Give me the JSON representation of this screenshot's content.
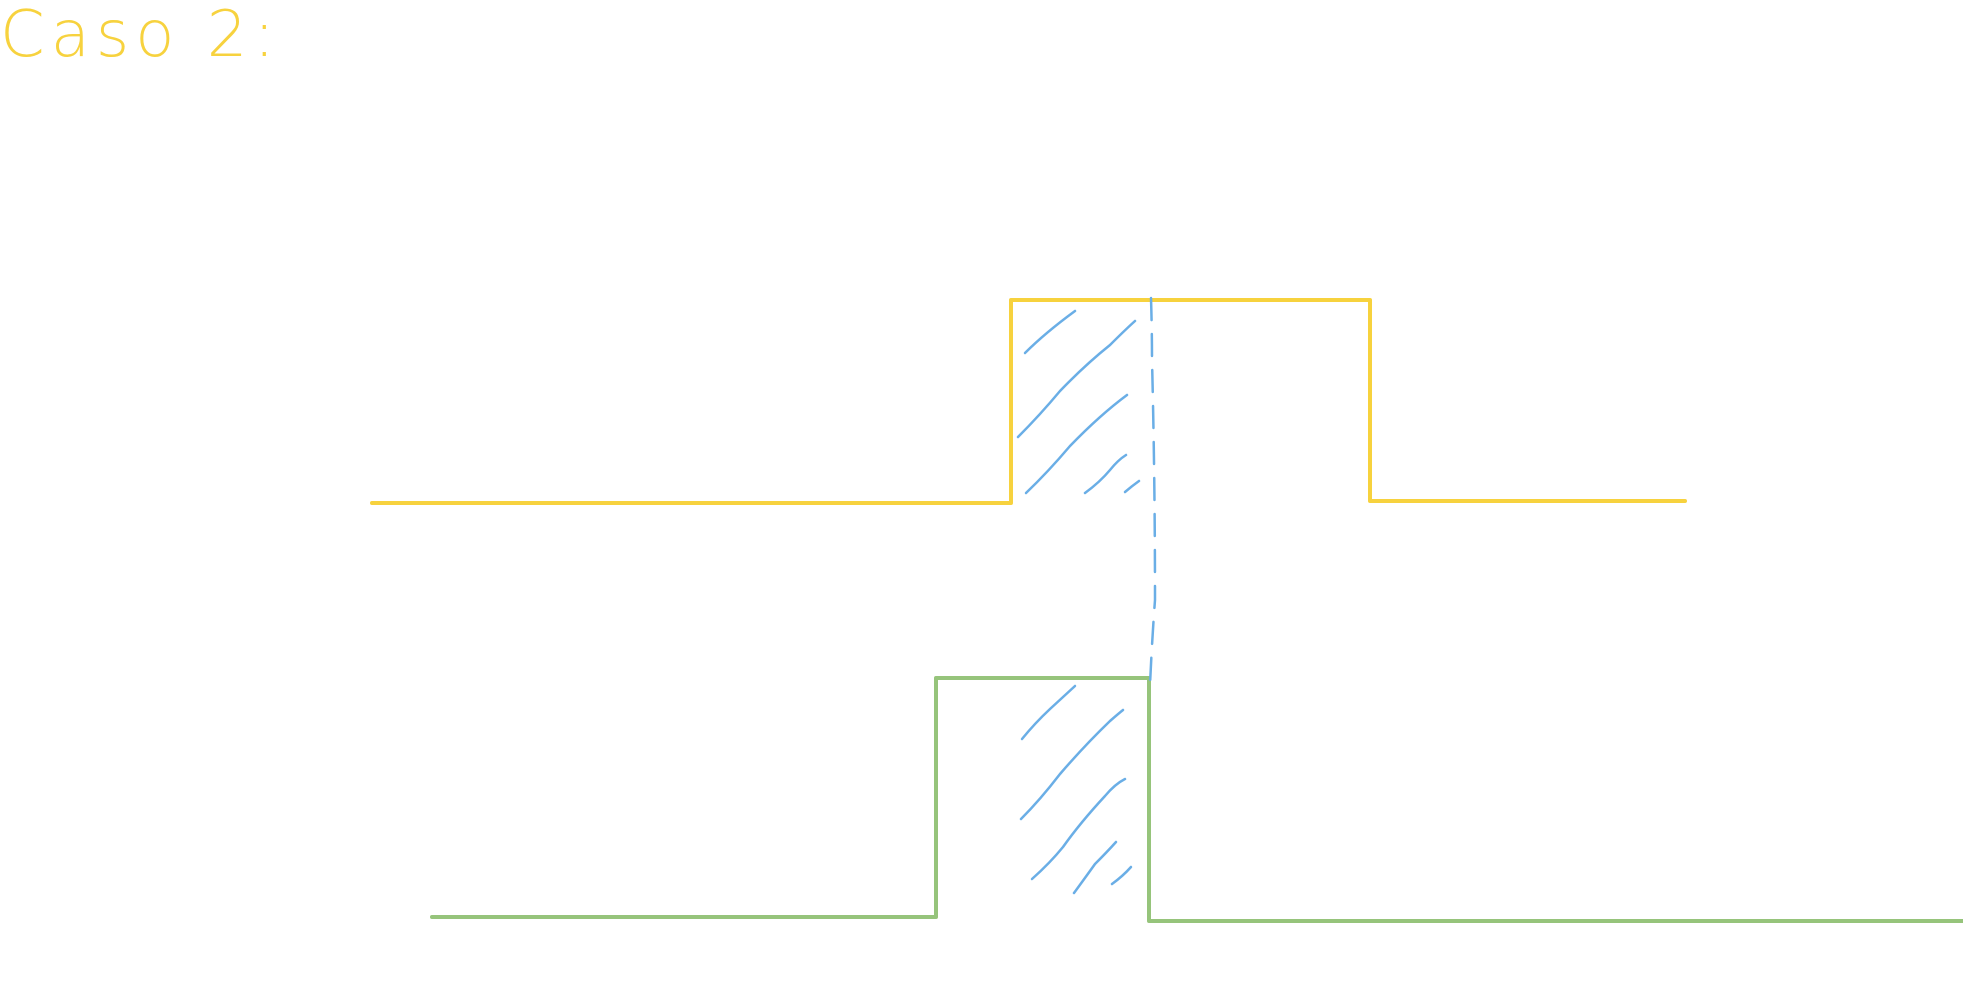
{
  "title": "Caso 2:",
  "colors": {
    "background": "#ffffff",
    "title": "#f7d23e",
    "signal_top": "#f7d23e",
    "signal_bottom": "#96c47b",
    "hatch": "#6aaee6"
  },
  "signals": [
    {
      "name": "",
      "color_key": "signal_top"
    },
    {
      "name": "",
      "color_key": "signal_bottom"
    }
  ]
}
